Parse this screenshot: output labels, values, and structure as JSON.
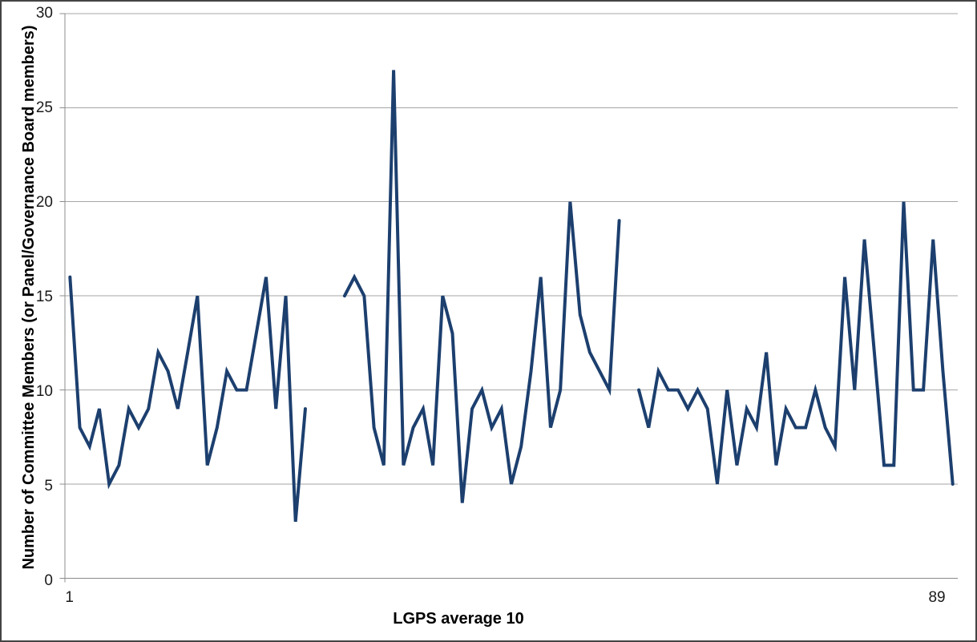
{
  "chart_data": {
    "type": "line",
    "title": "",
    "xlabel": "LGPS average 10",
    "ylabel": "Number of Committee Members (or Panel/Governance Board members)",
    "ylim": [
      0,
      30
    ],
    "yticks": [
      0,
      5,
      10,
      15,
      20,
      25,
      30
    ],
    "xtick_labels": [
      {
        "label": "1",
        "point": 1
      },
      {
        "label": "89",
        "point": 89
      }
    ],
    "n_points": 91,
    "gaps_at_points": [
      26,
      27,
      28,
      58
    ],
    "values": [
      16,
      8,
      7,
      9,
      5,
      6,
      9,
      8,
      9,
      12,
      11,
      9,
      12,
      15,
      6,
      8,
      11,
      10,
      10,
      13,
      16,
      9,
      15,
      3,
      9,
      null,
      null,
      null,
      15,
      16,
      15,
      8,
      6,
      27,
      6,
      8,
      9,
      6,
      15,
      13,
      4,
      9,
      10,
      8,
      9,
      5,
      7,
      11,
      16,
      8,
      10,
      20,
      14,
      12,
      11,
      10,
      19,
      null,
      10,
      8,
      11,
      10,
      10,
      9,
      10,
      9,
      5,
      10,
      6,
      9,
      8,
      12,
      6,
      9,
      8,
      8,
      10,
      8,
      7,
      16,
      10,
      18,
      12,
      6,
      6,
      20,
      10,
      10,
      18,
      11,
      5
    ],
    "grid": "horizontal",
    "legend": "none",
    "line_color": "#1C3F6E",
    "gridline_color": "#A6A6A6",
    "axis_color": "#8C8C8C",
    "text_color": "#1A1A1A",
    "background": "#FFFFFF",
    "border_color": "#444444"
  }
}
